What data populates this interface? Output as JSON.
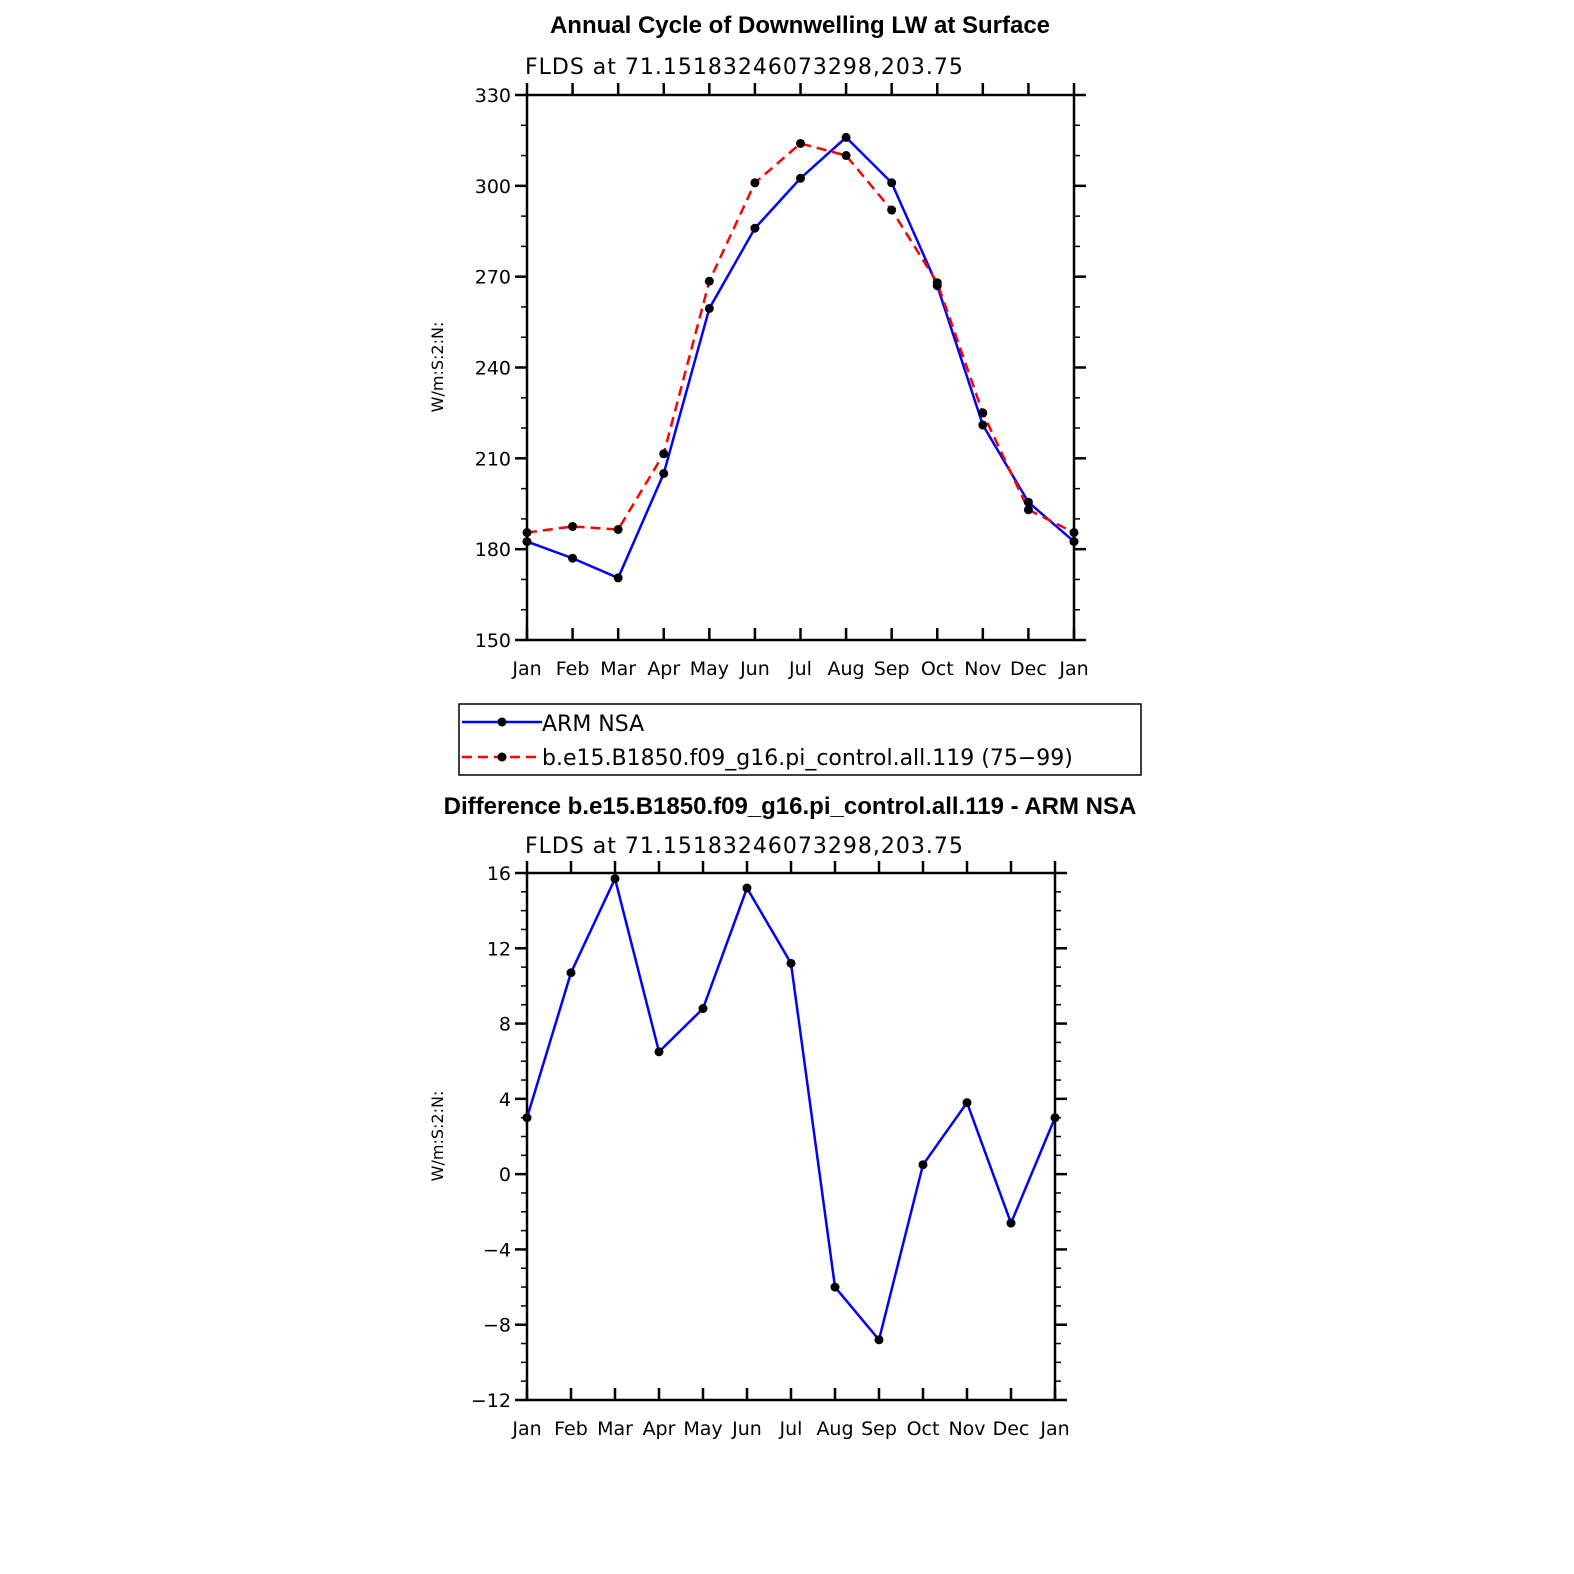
{
  "chart_data": [
    {
      "type": "line",
      "title": "Annual Cycle of Downwelling LW at Surface",
      "subtitle": "FLDS at 71.15183246073298,203.75",
      "ylabel": "W/m:S:2:N:",
      "xlabel": "",
      "categories": [
        "Jan",
        "Feb",
        "Mar",
        "Apr",
        "May",
        "Jun",
        "Jul",
        "Aug",
        "Sep",
        "Oct",
        "Nov",
        "Dec",
        "Jan"
      ],
      "ylim": [
        150,
        330
      ],
      "yticks": [
        150,
        180,
        210,
        240,
        270,
        300,
        330
      ],
      "yminor_step": 10,
      "grid": false,
      "legend_position": "bottom",
      "series": [
        {
          "name": "ARM NSA",
          "color": "#0000ff",
          "dash": "solid",
          "values": [
            182.5,
            177,
            170.5,
            205,
            259.5,
            286,
            302.5,
            316,
            301,
            267,
            221,
            195.5,
            182.5
          ]
        },
        {
          "name": "b.e15.B1850.f09_g16.pi_control.all.119 (75−99)",
          "color": "#ff0000",
          "dash": "dashed",
          "values": [
            185.5,
            187.5,
            186.5,
            211.5,
            268.5,
            301,
            314,
            310,
            292,
            268,
            225,
            193,
            185.5
          ]
        }
      ]
    },
    {
      "type": "line",
      "title": "Difference b.e15.B1850.f09_g16.pi_control.all.119 - ARM NSA",
      "subtitle": "FLDS at 71.15183246073298,203.75",
      "ylabel": "W/m:S:2:N:",
      "xlabel": "",
      "categories": [
        "Jan",
        "Feb",
        "Mar",
        "Apr",
        "May",
        "Jun",
        "Jul",
        "Aug",
        "Sep",
        "Oct",
        "Nov",
        "Dec",
        "Jan"
      ],
      "ylim": [
        -12,
        16
      ],
      "yticks": [
        -12,
        -8,
        -4,
        0,
        4,
        8,
        12,
        16
      ],
      "yminor_step": 1,
      "grid": false,
      "series": [
        {
          "color": "#0000ff",
          "dash": "solid",
          "values": [
            3,
            10.7,
            15.7,
            6.5,
            8.8,
            15.2,
            11.2,
            -6,
            -8.8,
            0.5,
            3.8,
            -2.6,
            3
          ]
        }
      ]
    }
  ]
}
